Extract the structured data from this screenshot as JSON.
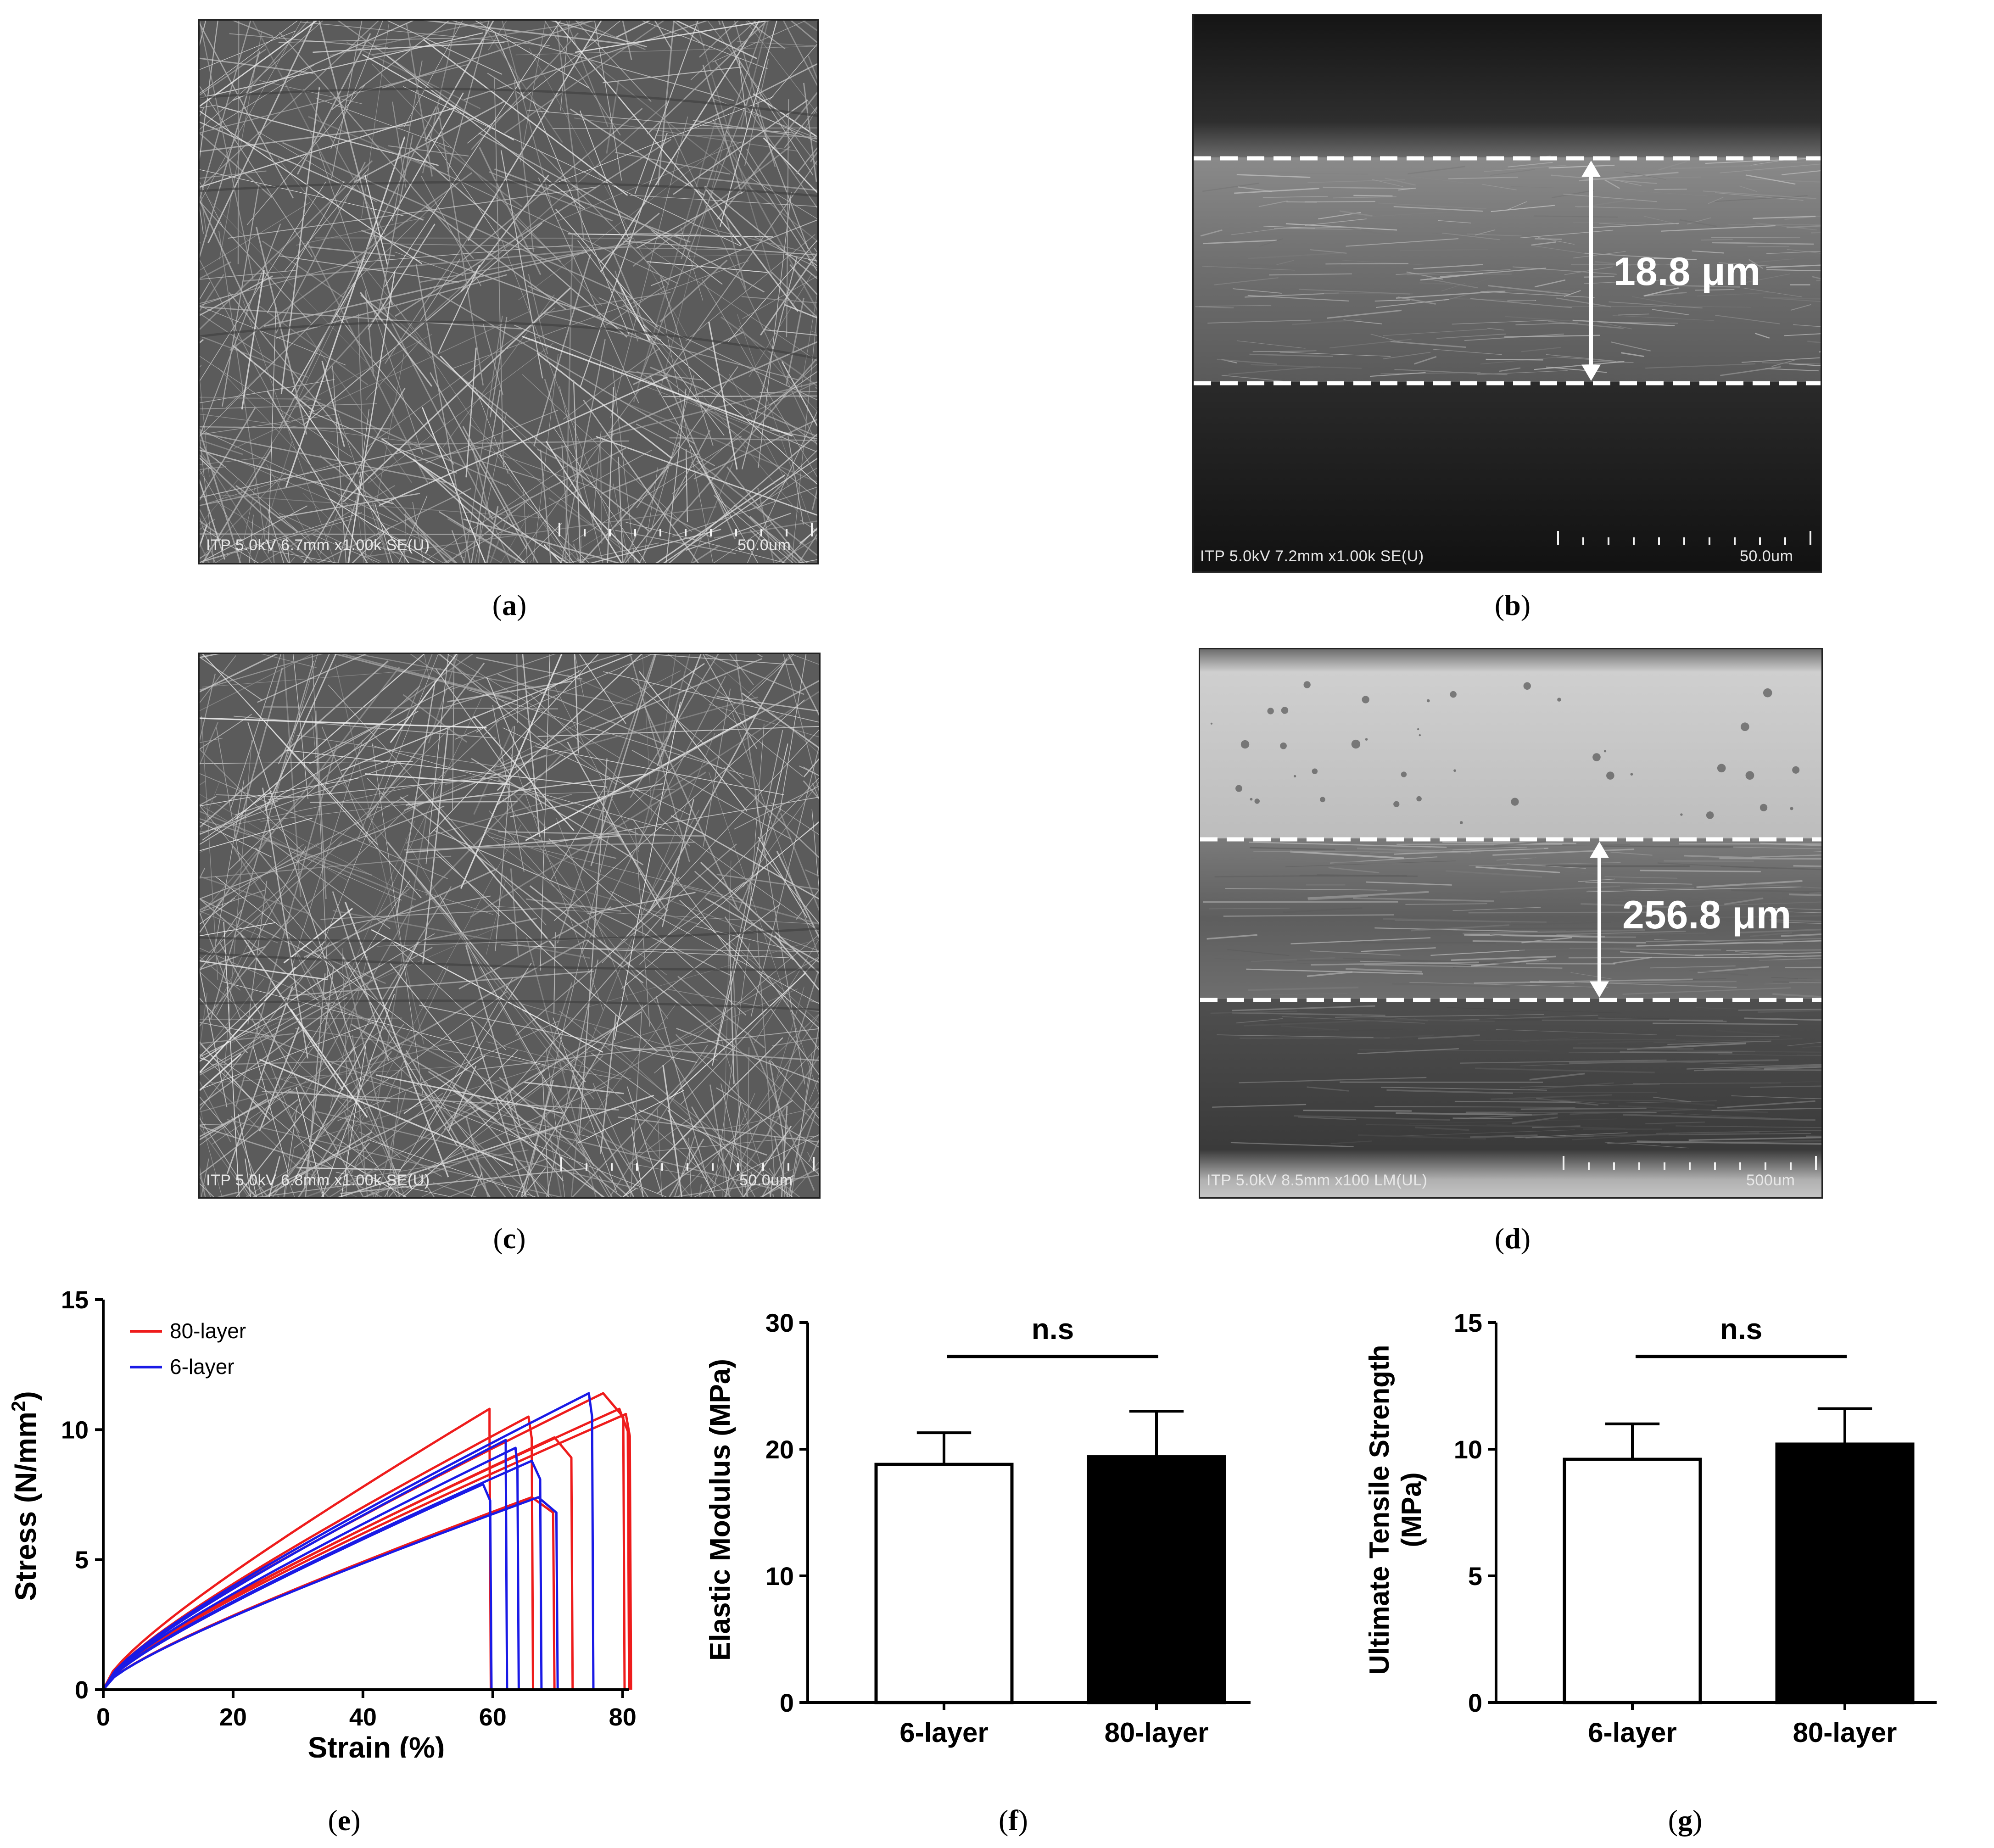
{
  "panels": {
    "a": {
      "caption_letter": "a",
      "sem_info": "ITP 5.0kV 6.7mm x1.00k SE(U)",
      "scale": "50.0um"
    },
    "b": {
      "caption_letter": "b",
      "sem_info": "ITP 5.0kV 7.2mm x1.00k SE(U)",
      "scale": "50.0um",
      "thickness": "18.8 μm"
    },
    "c": {
      "caption_letter": "c",
      "sem_info": "ITP 5.0kV 6.8mm x1.00k SE(U)",
      "scale": "50.0um"
    },
    "d": {
      "caption_letter": "d",
      "sem_info": "ITP 5.0kV 8.5mm x100 LM(UL)",
      "scale": "500um",
      "thickness": "256.8 μm"
    },
    "e": {
      "caption_letter": "e"
    },
    "f": {
      "caption_letter": "f"
    },
    "g": {
      "caption_letter": "g"
    }
  },
  "colors": {
    "red": "#ee1c1c",
    "blue": "#1a1ae6"
  },
  "chart_data": [
    {
      "id": "e",
      "type": "line",
      "xlabel": "Strain (%)",
      "ylabel_main": "Stress (N/mm",
      "ylabel_sup": "2",
      "ylabel_end": ")",
      "xlim": [
        0,
        82
      ],
      "ylim": [
        0,
        15
      ],
      "xticks": [
        0,
        20,
        40,
        60,
        80
      ],
      "yticks": [
        0,
        5,
        10,
        15
      ],
      "legend_position": "top-left",
      "legend": [
        {
          "name": "80-layer",
          "color": "#ee1c1c"
        },
        {
          "name": "6-layer",
          "color": "#1a1ae6"
        }
      ],
      "series": [
        {
          "group": "80-layer",
          "peak_strain": 59.5,
          "peak_stress": 10.8,
          "break_strain": 59.7
        },
        {
          "group": "80-layer",
          "peak_strain": 65.5,
          "peak_stress": 10.5,
          "break_strain": 66.2
        },
        {
          "group": "80-layer",
          "peak_strain": 69.5,
          "peak_stress": 9.7,
          "break_strain": 72.3
        },
        {
          "group": "80-layer",
          "peak_strain": 77.0,
          "peak_stress": 11.4,
          "break_strain": 80.3
        },
        {
          "group": "80-layer",
          "peak_strain": 79.5,
          "peak_stress": 10.8,
          "break_strain": 81.0
        },
        {
          "group": "80-layer",
          "peak_strain": 80.5,
          "peak_stress": 10.6,
          "break_strain": 81.3
        },
        {
          "group": "80-layer",
          "peak_strain": 66.0,
          "peak_stress": 7.4,
          "break_strain": 69.5
        },
        {
          "group": "6-layer",
          "peak_strain": 58.5,
          "peak_stress": 7.9,
          "break_strain": 59.8
        },
        {
          "group": "6-layer",
          "peak_strain": 62.0,
          "peak_stress": 9.6,
          "break_strain": 62.2
        },
        {
          "group": "6-layer",
          "peak_strain": 63.5,
          "peak_stress": 9.3,
          "break_strain": 64.0
        },
        {
          "group": "6-layer",
          "peak_strain": 66.0,
          "peak_stress": 8.8,
          "break_strain": 67.5
        },
        {
          "group": "6-layer",
          "peak_strain": 67.0,
          "peak_stress": 7.4,
          "break_strain": 70.0
        },
        {
          "group": "6-layer",
          "peak_strain": 74.8,
          "peak_stress": 11.4,
          "break_strain": 75.5
        }
      ]
    },
    {
      "id": "f",
      "type": "bar",
      "categories": [
        "6-layer",
        "80-layer"
      ],
      "values": [
        18.8,
        19.4
      ],
      "errors": [
        2.5,
        3.6
      ],
      "fills": [
        "#ffffff",
        "#000000"
      ],
      "ylabel": "Elastic Modulus (MPa)",
      "ylim": [
        0,
        30
      ],
      "yticks": [
        0,
        10,
        20,
        30
      ],
      "significance": "n.s"
    },
    {
      "id": "g",
      "type": "bar",
      "categories": [
        "6-layer",
        "80-layer"
      ],
      "values": [
        9.6,
        10.2
      ],
      "errors": [
        1.4,
        1.4
      ],
      "fills": [
        "#ffffff",
        "#000000"
      ],
      "ylabel_line1": "Ultimate Tensile Strength",
      "ylabel_line2": "(MPa)",
      "ylim": [
        0,
        15
      ],
      "yticks": [
        0,
        5,
        10,
        15
      ],
      "significance": "n.s"
    }
  ]
}
